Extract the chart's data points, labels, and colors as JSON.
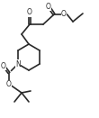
{
  "bg_color": "#ffffff",
  "line_color": "#2a2a2a",
  "lw": 1.2,
  "figsize": [
    1.1,
    1.31
  ],
  "dpi": 100,
  "xlim": [
    0,
    110
  ],
  "ylim": [
    0,
    131
  ]
}
